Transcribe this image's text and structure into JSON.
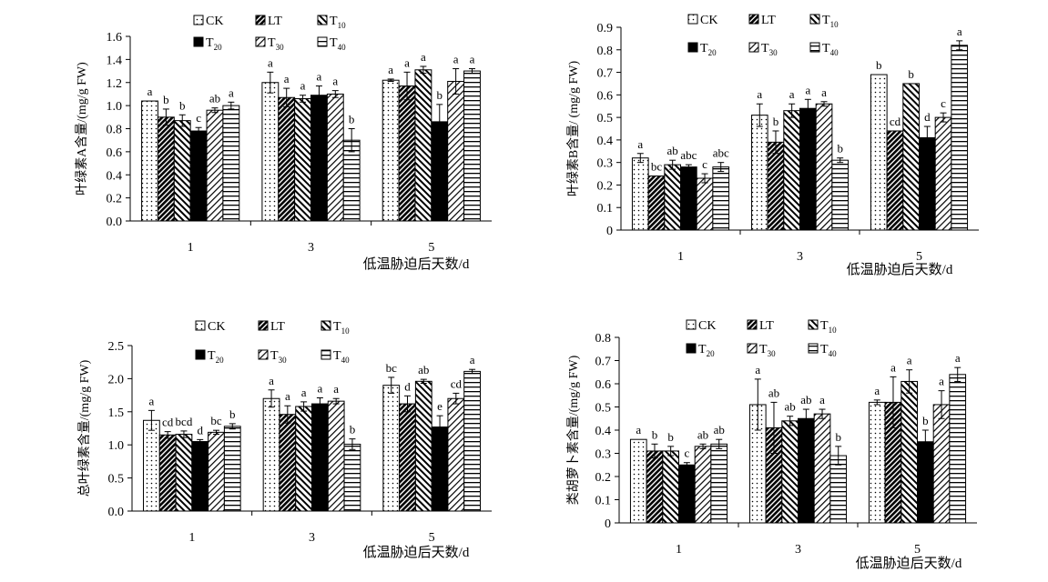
{
  "chart_data": [
    {
      "type": "bar",
      "ylabel": "叶绿素A含量/(mg/g FW)",
      "xlabel": "低温胁迫后天数/d",
      "categories": [
        "1",
        "3",
        "5"
      ],
      "ylim": [
        0,
        1.6
      ],
      "yticks": [
        "0.0",
        "0.2",
        "0.4",
        "0.6",
        "0.8",
        "1.0",
        "1.2",
        "1.4",
        "1.6"
      ],
      "series": [
        {
          "name": "CK",
          "values": [
            1.04,
            1.2,
            1.22
          ],
          "errors": [
            0.0,
            0.09,
            0.01
          ],
          "letters": [
            "a",
            "a",
            "a"
          ]
        },
        {
          "name": "LT",
          "values": [
            0.9,
            1.07,
            1.17
          ],
          "errors": [
            0.07,
            0.08,
            0.12
          ],
          "letters": [
            "b",
            "a",
            "a"
          ]
        },
        {
          "name": "T10",
          "values": [
            0.87,
            1.06,
            1.31
          ],
          "errors": [
            0.05,
            0.03,
            0.03
          ],
          "letters": [
            "b",
            "a",
            "a"
          ]
        },
        {
          "name": "T20",
          "values": [
            0.78,
            1.09,
            0.86
          ],
          "errors": [
            0.03,
            0.08,
            0.15
          ],
          "letters": [
            "c",
            "a",
            "b"
          ]
        },
        {
          "name": "T30",
          "values": [
            0.96,
            1.1,
            1.21
          ],
          "errors": [
            0.02,
            0.03,
            0.11
          ],
          "letters": [
            "ab",
            "a",
            "a"
          ]
        },
        {
          "name": "T40",
          "values": [
            1.0,
            0.7,
            1.3
          ],
          "errors": [
            0.03,
            0.1,
            0.02
          ],
          "letters": [
            "a",
            "b",
            "a"
          ]
        }
      ]
    },
    {
      "type": "bar",
      "ylabel": "叶绿素B含量/ (mg/g FW)",
      "xlabel": "低温胁迫后天数/d",
      "categories": [
        "1",
        "3",
        "5"
      ],
      "ylim": [
        0,
        0.9
      ],
      "yticks": [
        "0",
        "0.1",
        "0.2",
        "0.3",
        "0.4",
        "0.5",
        "0.6",
        "0.7",
        "0.8",
        "0.9"
      ],
      "series": [
        {
          "name": "CK",
          "values": [
            0.32,
            0.51,
            0.69
          ],
          "errors": [
            0.02,
            0.05,
            0.0
          ],
          "letters": [
            "a",
            "a",
            "b"
          ]
        },
        {
          "name": "LT",
          "values": [
            0.24,
            0.39,
            0.44
          ],
          "errors": [
            0.0,
            0.05,
            0.0
          ],
          "letters": [
            "bc",
            "b",
            "cd"
          ]
        },
        {
          "name": "T10",
          "values": [
            0.29,
            0.53,
            0.65
          ],
          "errors": [
            0.02,
            0.03,
            0.0
          ],
          "letters": [
            "ab",
            "a",
            "b"
          ]
        },
        {
          "name": "T20",
          "values": [
            0.28,
            0.54,
            0.41
          ],
          "errors": [
            0.01,
            0.04,
            0.05
          ],
          "letters": [
            "abc",
            "a",
            "d"
          ]
        },
        {
          "name": "T30",
          "values": [
            0.23,
            0.56,
            0.5
          ],
          "errors": [
            0.02,
            0.01,
            0.02
          ],
          "letters": [
            "c",
            "a",
            "c"
          ]
        },
        {
          "name": "T40",
          "values": [
            0.28,
            0.31,
            0.82
          ],
          "errors": [
            0.02,
            0.01,
            0.02
          ],
          "letters": [
            "abc",
            "b",
            "a"
          ]
        }
      ]
    },
    {
      "type": "bar",
      "ylabel": "总叶绿素含量/(mg/g FW)",
      "xlabel": "低温胁迫后天数/d",
      "categories": [
        "1",
        "3",
        "5"
      ],
      "ylim": [
        0,
        2.5
      ],
      "yticks": [
        "0.0",
        "0.5",
        "1.0",
        "1.5",
        "2.0",
        "2.5"
      ],
      "series": [
        {
          "name": "CK",
          "values": [
            1.37,
            1.7,
            1.9
          ],
          "errors": [
            0.15,
            0.13,
            0.12
          ],
          "letters": [
            "a",
            "a",
            "bc"
          ]
        },
        {
          "name": "LT",
          "values": [
            1.15,
            1.46,
            1.62
          ],
          "errors": [
            0.05,
            0.13,
            0.12
          ],
          "letters": [
            "cd",
            "a",
            "d"
          ]
        },
        {
          "name": "T10",
          "values": [
            1.16,
            1.58,
            1.96
          ],
          "errors": [
            0.05,
            0.07,
            0.03
          ],
          "letters": [
            "bcd",
            "a",
            "ab"
          ]
        },
        {
          "name": "T20",
          "values": [
            1.05,
            1.62,
            1.27
          ],
          "errors": [
            0.03,
            0.09,
            0.17
          ],
          "letters": [
            "d",
            "a",
            "e"
          ]
        },
        {
          "name": "T30",
          "values": [
            1.19,
            1.66,
            1.7
          ],
          "errors": [
            0.03,
            0.04,
            0.08
          ],
          "letters": [
            "bc",
            "a",
            "cd"
          ]
        },
        {
          "name": "T40",
          "values": [
            1.28,
            1.01,
            2.11
          ],
          "errors": [
            0.04,
            0.08,
            0.03
          ],
          "letters": [
            "b",
            "b",
            "a"
          ]
        }
      ]
    },
    {
      "type": "bar",
      "ylabel": "类胡萝卜素含量/(mg/g FW)",
      "xlabel": "低温胁迫后天数/d",
      "categories": [
        "1",
        "3",
        "5"
      ],
      "ylim": [
        0,
        0.8
      ],
      "yticks": [
        "0",
        "0.1",
        "0.2",
        "0.3",
        "0.4",
        "0.5",
        "0.6",
        "0.7",
        "0.8"
      ],
      "series": [
        {
          "name": "CK",
          "values": [
            0.36,
            0.51,
            0.52
          ],
          "errors": [
            0.0,
            0.11,
            0.01
          ],
          "letters": [
            "a",
            "a",
            "a"
          ]
        },
        {
          "name": "LT",
          "values": [
            0.31,
            0.41,
            0.52
          ],
          "errors": [
            0.03,
            0.11,
            0.11
          ],
          "letters": [
            "b",
            "ab",
            "a"
          ]
        },
        {
          "name": "T10",
          "values": [
            0.31,
            0.44,
            0.61
          ],
          "errors": [
            0.02,
            0.02,
            0.05
          ],
          "letters": [
            "b",
            "ab",
            "a"
          ]
        },
        {
          "name": "T20",
          "values": [
            0.25,
            0.45,
            0.35
          ],
          "errors": [
            0.01,
            0.04,
            0.05
          ],
          "letters": [
            "c",
            "ab",
            "b"
          ]
        },
        {
          "name": "T30",
          "values": [
            0.33,
            0.47,
            0.51
          ],
          "errors": [
            0.01,
            0.02,
            0.06
          ],
          "letters": [
            "ab",
            "a",
            "a"
          ]
        },
        {
          "name": "T40",
          "values": [
            0.34,
            0.29,
            0.64
          ],
          "errors": [
            0.02,
            0.04,
            0.03
          ],
          "letters": [
            "ab",
            "b",
            "a"
          ]
        }
      ]
    }
  ]
}
